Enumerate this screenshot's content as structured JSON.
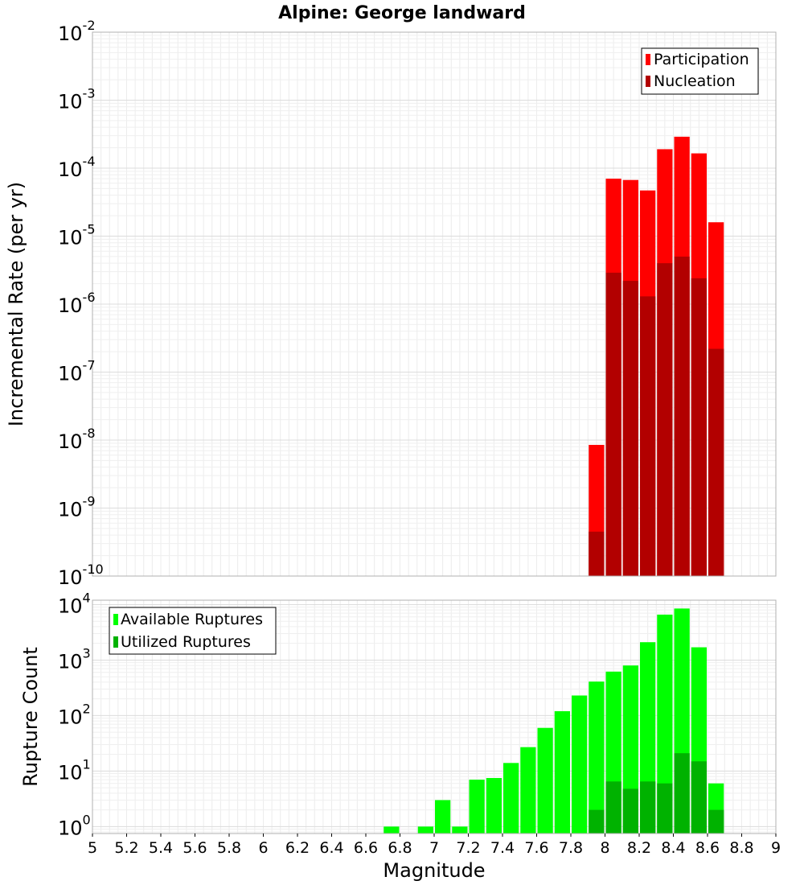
{
  "title": "Alpine: George landward",
  "chart_data": [
    {
      "type": "bar",
      "ylabel": "Incremental Rate (per yr)",
      "y_scale": "log",
      "ylim": [
        1e-10,
        0.01
      ],
      "xlim": [
        5,
        9
      ],
      "grid": true,
      "legend_position": "top-right",
      "bin_width": 0.1,
      "x": [
        7.95,
        8.05,
        8.15,
        8.25,
        8.35,
        8.45,
        8.55,
        8.65
      ],
      "series": [
        {
          "name": "Participation",
          "color": "#ff0000",
          "values": [
            8.5e-09,
            7e-05,
            6.7e-05,
            4.7e-05,
            0.00019,
            0.00029,
            0.000165,
            1.6e-05
          ]
        },
        {
          "name": "Nucleation",
          "color": "#b20000",
          "values": [
            4.5e-10,
            2.9e-06,
            2.2e-06,
            1.3e-06,
            4e-06,
            5e-06,
            2.4e-06,
            2.2e-07
          ]
        }
      ],
      "y_tick_labels": [
        {
          "base": "10",
          "exp": "-10"
        },
        {
          "base": "10",
          "exp": "-9"
        },
        {
          "base": "10",
          "exp": "-8"
        },
        {
          "base": "10",
          "exp": "-7"
        },
        {
          "base": "10",
          "exp": "-6"
        },
        {
          "base": "10",
          "exp": "-5"
        },
        {
          "base": "10",
          "exp": "-4"
        },
        {
          "base": "10",
          "exp": "-3"
        },
        {
          "base": "10",
          "exp": "-2"
        }
      ]
    },
    {
      "type": "bar",
      "xlabel": "Magnitude",
      "ylabel": "Rupture Count",
      "y_scale": "log",
      "ylim": [
        0.75,
        12000
      ],
      "xlim": [
        5,
        9
      ],
      "grid": true,
      "legend_position": "top-left",
      "bin_width": 0.1,
      "x": [
        6.75,
        6.85,
        6.95,
        7.05,
        7.15,
        7.25,
        7.35,
        7.45,
        7.55,
        7.65,
        7.75,
        7.85,
        7.95,
        8.05,
        8.15,
        8.25,
        8.35,
        8.45,
        8.55,
        8.65
      ],
      "series": [
        {
          "name": "Available Ruptures",
          "color": "#00ff00",
          "values": [
            1,
            0,
            1,
            3,
            1,
            7,
            7.5,
            14,
            27,
            60,
            120,
            230,
            410,
            620,
            800,
            2100,
            6600,
            8500,
            1700,
            6
          ]
        },
        {
          "name": "Utilized Ruptures",
          "color": "#00b200",
          "values": [
            0,
            0,
            0,
            0,
            0,
            0,
            0,
            0,
            0,
            0,
            0,
            0,
            2,
            6.5,
            4.8,
            6.5,
            6,
            21,
            15,
            2
          ]
        }
      ],
      "y_tick_labels": [
        {
          "base": "10",
          "exp": "0"
        },
        {
          "base": "10",
          "exp": "1"
        },
        {
          "base": "10",
          "exp": "2"
        },
        {
          "base": "10",
          "exp": "3"
        },
        {
          "base": "10",
          "exp": "4"
        }
      ],
      "x_tick_labels": [
        "5",
        "5.2",
        "5.4",
        "5.6",
        "5.8",
        "6",
        "6.2",
        "6.4",
        "6.6",
        "6.8",
        "7",
        "7.2",
        "7.4",
        "7.6",
        "7.8",
        "8",
        "8.2",
        "8.4",
        "8.6",
        "8.8",
        "9"
      ]
    }
  ]
}
